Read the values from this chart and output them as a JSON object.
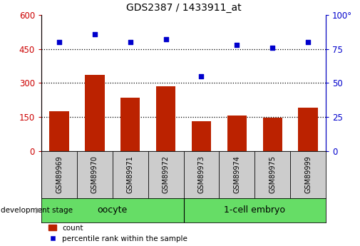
{
  "title": "GDS2387 / 1433911_at",
  "samples": [
    "GSM89969",
    "GSM89970",
    "GSM89971",
    "GSM89972",
    "GSM89973",
    "GSM89974",
    "GSM89975",
    "GSM89999"
  ],
  "counts": [
    175,
    335,
    235,
    285,
    132,
    158,
    148,
    192
  ],
  "percentile_ranks": [
    80,
    86,
    80,
    82,
    55,
    78,
    76,
    80
  ],
  "groups": [
    {
      "label": "oocyte",
      "start": 0,
      "end": 4
    },
    {
      "label": "1-cell embryo",
      "start": 4,
      "end": 8
    }
  ],
  "bar_color": "#BB2200",
  "scatter_color": "#0000CC",
  "left_yaxis": {
    "min": 0,
    "max": 600,
    "ticks": [
      0,
      150,
      300,
      450,
      600
    ],
    "color": "#CC0000"
  },
  "right_yaxis": {
    "min": 0,
    "max": 100,
    "ticks": [
      0,
      25,
      50,
      75,
      100
    ],
    "color": "#0000CC"
  },
  "grid_values": [
    150,
    300,
    450
  ],
  "background_color": "#ffffff",
  "tick_label_area_color": "#CCCCCC",
  "group_area_color": "#66DD66",
  "legend_labels": [
    "count",
    "percentile rank within the sample"
  ],
  "development_stage_label": "development stage",
  "bar_width": 0.55
}
